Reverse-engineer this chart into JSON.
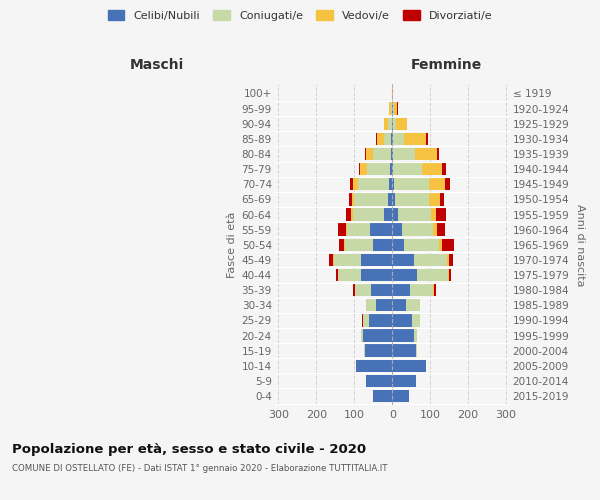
{
  "age_groups": [
    "0-4",
    "5-9",
    "10-14",
    "15-19",
    "20-24",
    "25-29",
    "30-34",
    "35-39",
    "40-44",
    "45-49",
    "50-54",
    "55-59",
    "60-64",
    "65-69",
    "70-74",
    "75-79",
    "80-84",
    "85-89",
    "90-94",
    "95-99",
    "100+"
  ],
  "birth_years": [
    "2015-2019",
    "2010-2014",
    "2005-2009",
    "2000-2004",
    "1995-1999",
    "1990-1994",
    "1985-1989",
    "1980-1984",
    "1975-1979",
    "1970-1974",
    "1965-1969",
    "1960-1964",
    "1955-1959",
    "1950-1954",
    "1945-1949",
    "1940-1944",
    "1935-1939",
    "1930-1934",
    "1925-1929",
    "1920-1924",
    "≤ 1919"
  ],
  "colors": {
    "celibi": "#4872b8",
    "coniugati": "#c8d9a8",
    "vedovi": "#f5c242",
    "divorziati": "#c00000"
  },
  "males": {
    "celibi": [
      52,
      68,
      95,
      72,
      78,
      62,
      42,
      57,
      82,
      82,
      52,
      58,
      22,
      12,
      8,
      5,
      4,
      3,
      2,
      1,
      0
    ],
    "coniugati": [
      0,
      0,
      0,
      2,
      5,
      16,
      26,
      42,
      62,
      72,
      72,
      62,
      82,
      88,
      82,
      62,
      48,
      20,
      8,
      2,
      0
    ],
    "vedovi": [
      0,
      0,
      0,
      0,
      0,
      0,
      0,
      0,
      0,
      2,
      2,
      2,
      4,
      6,
      14,
      18,
      18,
      16,
      12,
      5,
      0
    ],
    "divorziati": [
      0,
      0,
      0,
      0,
      0,
      3,
      0,
      5,
      5,
      12,
      15,
      22,
      15,
      8,
      8,
      3,
      2,
      3,
      0,
      0,
      0
    ]
  },
  "females": {
    "celibi": [
      45,
      62,
      88,
      62,
      58,
      52,
      36,
      46,
      66,
      56,
      32,
      26,
      16,
      6,
      5,
      3,
      3,
      2,
      2,
      2,
      0
    ],
    "coniugati": [
      0,
      0,
      0,
      4,
      8,
      22,
      36,
      62,
      82,
      88,
      92,
      82,
      86,
      92,
      92,
      76,
      56,
      30,
      8,
      2,
      0
    ],
    "vedovi": [
      0,
      0,
      0,
      0,
      0,
      0,
      0,
      1,
      2,
      5,
      8,
      10,
      14,
      28,
      42,
      52,
      58,
      58,
      28,
      8,
      2
    ],
    "divorziati": [
      0,
      0,
      0,
      0,
      0,
      0,
      0,
      5,
      5,
      10,
      30,
      22,
      25,
      10,
      12,
      10,
      5,
      5,
      2,
      3,
      0
    ]
  },
  "title": "Popolazione per età, sesso e stato civile - 2020",
  "subtitle": "COMUNE DI OSTELLATO (FE) - Dati ISTAT 1° gennaio 2020 - Elaborazione TUTTITALIA.IT",
  "xlabel_left": "Maschi",
  "xlabel_right": "Femmine",
  "ylabel_left": "Fasce di età",
  "ylabel_right": "Anni di nascita",
  "xlim": 310,
  "background_color": "#f5f5f5",
  "grid_color": "#cccccc"
}
